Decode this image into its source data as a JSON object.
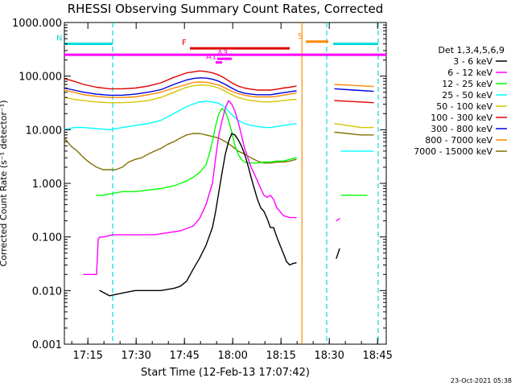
{
  "chart_data": {
    "type": "line",
    "title": "RHESSI Observing Summary Count Rates, Corrected",
    "xlabel": "Start Time (12-Feb-13 17:07:42)",
    "ylabel": "Corrected Count Rate (s⁻¹ detector⁻¹)",
    "yscale": "log",
    "ylim": [
      0.001,
      1000
    ],
    "xlim_minutes": [
      0,
      100
    ],
    "x_tick_labels": [
      "17:15",
      "17:30",
      "17:45",
      "18:00",
      "18:15",
      "18:30",
      "18:45"
    ],
    "x_tick_minutes": [
      7.3,
      22.3,
      37.3,
      52.3,
      67.3,
      82.3,
      97.3
    ],
    "y_tick_labels": [
      "0.001",
      "0.010",
      "0.100",
      "1.000",
      "10.000",
      "100.000",
      "1000.000"
    ],
    "y_tick_values": [
      0.001,
      0.01,
      0.1,
      1,
      10,
      100,
      1000
    ],
    "footer_date": "23-Oct-2021 05:38",
    "legend": {
      "header": "Det 1,3,4,5,6,9",
      "entries": [
        {
          "label": "3 - 6 keV",
          "color": "#000000"
        },
        {
          "label": "6 - 12 keV",
          "color": "#ff00ff"
        },
        {
          "label": "12 - 25 keV",
          "color": "#00ff00"
        },
        {
          "label": "25 - 50 keV",
          "color": "#00ffff"
        },
        {
          "label": "50 - 100 keV",
          "color": "#d4c800"
        },
        {
          "label": "100 - 300 keV",
          "color": "#e00000"
        },
        {
          "label": "300 - 800 keV",
          "color": "#0000e0"
        },
        {
          "label": "800 - 7000 keV",
          "color": "#ff8800"
        },
        {
          "label": "7000 - 15000 keV",
          "color": "#807000"
        }
      ]
    },
    "flags": [
      {
        "label": "N",
        "color": "#00dddd",
        "segments": [
          [
            0,
            15
          ],
          [
            83.5,
            97.5
          ]
        ],
        "level": 400
      },
      {
        "label": "F",
        "color": "#e00000",
        "segments": [
          [
            39,
            70
          ]
        ],
        "level": 330
      },
      {
        "label": "S",
        "color": "#ff8800",
        "segments": [
          [
            75,
            82
          ]
        ],
        "level": 440
      },
      {
        "label": "A1",
        "color": "#ff00ff",
        "segments": [
          [
            47,
            49
          ]
        ],
        "level": 180
      },
      {
        "label": "A3",
        "color": "#ff00ff",
        "segments": [
          [
            47.5,
            52
          ]
        ],
        "level": 210
      }
    ],
    "full_flag": {
      "color": "#ff00ff",
      "x0": 0,
      "x1": 100,
      "level": 250
    },
    "vertical_markers": [
      {
        "x": 15,
        "color": "#00dddd",
        "style": "dashed"
      },
      {
        "x": 73.8,
        "color": "#ff8800",
        "style": "solid"
      },
      {
        "x": 81.5,
        "color": "#00dddd",
        "style": "dashed"
      },
      {
        "x": 97.5,
        "color": "#00dddd",
        "style": "dashed"
      }
    ],
    "series": [
      {
        "name": "3 - 6 keV",
        "color": "#000000",
        "segments": [
          {
            "x": [
              11,
              14,
              18,
              22,
              26,
              30,
              34,
              36,
              38,
              40,
              42,
              44,
              46,
              47,
              48,
              49,
              50,
              51,
              52,
              53,
              54,
              55,
              56,
              57,
              58,
              59,
              60,
              61,
              62,
              63,
              64,
              65,
              66,
              67,
              68,
              69,
              70,
              71,
              72
            ],
            "y": [
              0.01,
              0.008,
              0.009,
              0.01,
              0.01,
              0.01,
              0.011,
              0.012,
              0.015,
              0.025,
              0.04,
              0.07,
              0.15,
              0.3,
              0.7,
              1.6,
              3.5,
              6,
              8.5,
              8,
              6.5,
              5,
              3.5,
              2.2,
              1.3,
              0.8,
              0.5,
              0.35,
              0.3,
              0.22,
              0.15,
              0.15,
              0.1,
              0.07,
              0.05,
              0.035,
              0.03,
              0.032,
              0.033
            ]
          },
          {
            "x": [
              84.5,
              85.5
            ],
            "y": [
              0.04,
              0.06
            ]
          }
        ]
      },
      {
        "name": "6 - 12 keV",
        "color": "#ff00ff",
        "segments": [
          {
            "x": [
              6,
              7,
              10,
              10.5,
              11,
              12,
              15,
              20,
              24,
              28,
              32,
              36,
              40,
              42,
              44,
              46,
              47,
              48,
              49,
              50,
              51,
              52,
              53,
              54,
              55,
              56,
              57,
              58,
              59,
              60,
              61,
              62,
              63,
              64,
              65,
              66,
              67,
              68,
              69,
              70,
              71,
              72
            ],
            "y": [
              0.02,
              0.02,
              0.02,
              0.09,
              0.1,
              0.1,
              0.11,
              0.11,
              0.11,
              0.11,
              0.12,
              0.13,
              0.16,
              0.22,
              0.4,
              1,
              3,
              8,
              15,
              25,
              35,
              30,
              22,
              14,
              8,
              4.5,
              3,
              2,
              1.5,
              1.1,
              0.8,
              0.6,
              0.55,
              0.6,
              0.5,
              0.35,
              0.3,
              0.25,
              0.24,
              0.23,
              0.23,
              0.23
            ]
          },
          {
            "x": [
              84.5,
              85.5
            ],
            "y": [
              0.2,
              0.22
            ]
          }
        ]
      },
      {
        "name": "12 - 25 keV",
        "color": "#00ff00",
        "segments": [
          {
            "x": [
              10,
              12,
              15,
              18,
              22,
              26,
              30,
              32,
              34,
              36,
              38,
              40,
              42,
              44,
              45,
              46,
              47,
              48,
              49,
              50,
              51,
              52,
              53,
              54,
              55,
              56,
              57,
              58,
              59,
              60,
              62,
              64,
              66,
              68,
              70,
              72
            ],
            "y": [
              0.6,
              0.6,
              0.65,
              0.7,
              0.7,
              0.75,
              0.8,
              0.85,
              0.9,
              1,
              1.1,
              1.3,
              1.6,
              2.2,
              3.5,
              6,
              12,
              20,
              25,
              22,
              15,
              9,
              5,
              3.5,
              2.8,
              2.5,
              2.4,
              2.4,
              2.4,
              2.4,
              2.5,
              2.5,
              2.6,
              2.6,
              2.8,
              3
            ]
          },
          {
            "x": [
              86,
              94
            ],
            "y": [
              0.6,
              0.6
            ]
          }
        ]
      },
      {
        "name": "25 - 50 keV",
        "color": "#00ffff",
        "segments": [
          {
            "x": [
              0,
              3,
              6,
              10,
              14,
              18,
              22,
              26,
              30,
              34,
              38,
              40,
              42,
              44,
              46,
              48,
              50,
              52,
              54,
              56,
              58,
              60,
              62,
              64,
              66,
              68,
              70,
              72
            ],
            "y": [
              10,
              11,
              11,
              10.5,
              10,
              11,
              12,
              13,
              15,
              20,
              27,
              30,
              33,
              34,
              33,
              31,
              26,
              19,
              15,
              13,
              12,
              11.5,
              11,
              11,
              11.5,
              12,
              12.5,
              13
            ]
          },
          {
            "x": [
              86,
              96
            ],
            "y": [
              4,
              4
            ]
          }
        ]
      },
      {
        "name": "50 - 100 keV",
        "color": "#d4c800",
        "segments": [
          {
            "x": [
              0,
              3,
              6,
              10,
              14,
              18,
              22,
              26,
              30,
              34,
              38,
              40,
              42,
              44,
              46,
              48,
              50,
              52,
              54,
              56,
              58,
              60,
              62,
              64,
              66,
              68,
              70,
              72
            ],
            "y": [
              40,
              37,
              35,
              33,
              32,
              32,
              33,
              35,
              40,
              50,
              62,
              66,
              68,
              68,
              65,
              60,
              52,
              45,
              40,
              37,
              35,
              34,
              33,
              33,
              34,
              35,
              36,
              37
            ]
          },
          {
            "x": [
              84,
              88,
              92,
              96
            ],
            "y": [
              13,
              12,
              11,
              11
            ]
          }
        ]
      },
      {
        "name": "100 - 300 keV",
        "color": "#e00000",
        "segments": [
          {
            "x": [
              0,
              3,
              6,
              10,
              14,
              18,
              22,
              26,
              30,
              34,
              38,
              40,
              42,
              44,
              46,
              48,
              50,
              52,
              54,
              56,
              58,
              60,
              62,
              64,
              66,
              68,
              70,
              72
            ],
            "y": [
              90,
              80,
              70,
              62,
              58,
              58,
              60,
              65,
              75,
              95,
              115,
              120,
              125,
              122,
              115,
              105,
              90,
              75,
              65,
              60,
              57,
              55,
              55,
              55,
              57,
              60,
              62,
              65
            ]
          },
          {
            "x": [
              84,
              88,
              92,
              96
            ],
            "y": [
              35,
              34,
              33,
              32
            ]
          }
        ]
      },
      {
        "name": "300 - 800 keV",
        "color": "#0000e0",
        "segments": [
          {
            "x": [
              0,
              3,
              6,
              10,
              14,
              18,
              22,
              26,
              30,
              34,
              38,
              40,
              42,
              44,
              46,
              48,
              50,
              52,
              54,
              56,
              58,
              60,
              62,
              64,
              66,
              68,
              70,
              72
            ],
            "y": [
              60,
              55,
              50,
              46,
              44,
              44,
              46,
              50,
              56,
              70,
              85,
              90,
              93,
              92,
              88,
              80,
              70,
              60,
              52,
              48,
              46,
              45,
              45,
              45,
              47,
              49,
              51,
              53
            ]
          },
          {
            "x": [
              84,
              88,
              92,
              96
            ],
            "y": [
              58,
              56,
              54,
              52
            ]
          }
        ]
      },
      {
        "name": "800 - 7000 keV",
        "color": "#ff8800",
        "segments": [
          {
            "x": [
              0,
              3,
              6,
              10,
              14,
              18,
              22,
              26,
              30,
              34,
              38,
              40,
              42,
              44,
              46,
              48,
              50,
              52,
              54,
              56,
              58,
              60,
              62,
              64,
              66,
              68,
              70,
              72
            ],
            "y": [
              55,
              50,
              45,
              42,
              40,
              40,
              41,
              45,
              50,
              60,
              70,
              76,
              78,
              77,
              73,
              68,
              60,
              52,
              47,
              44,
              42,
              41,
              41,
              41,
              42,
              44,
              46,
              48
            ]
          },
          {
            "x": [
              84,
              88,
              92,
              96
            ],
            "y": [
              70,
              68,
              66,
              64
            ]
          }
        ]
      },
      {
        "name": "7000 - 15000 keV",
        "color": "#807000",
        "segments": [
          {
            "x": [
              0,
              2,
              4,
              6,
              8,
              10,
              12,
              14,
              16,
              18,
              20,
              22,
              24,
              26,
              28,
              30,
              32,
              34,
              36,
              38,
              40,
              42,
              44,
              46,
              48,
              50,
              52,
              54,
              56,
              58,
              60,
              62,
              64,
              66,
              68,
              70,
              72
            ],
            "y": [
              7,
              5,
              4,
              3,
              2.4,
              2,
              1.8,
              1.8,
              1.8,
              2,
              2.5,
              2.8,
              3,
              3.5,
              4,
              4.5,
              5.3,
              6,
              7,
              8,
              8.5,
              8.5,
              8,
              7.5,
              7,
              6,
              5,
              4,
              3.5,
              3,
              2.6,
              2.4,
              2.4,
              2.5,
              2.5,
              2.6,
              2.8
            ]
          },
          {
            "x": [
              84,
              88,
              92,
              96
            ],
            "y": [
              9,
              8.5,
              8,
              8
            ]
          }
        ]
      }
    ]
  }
}
